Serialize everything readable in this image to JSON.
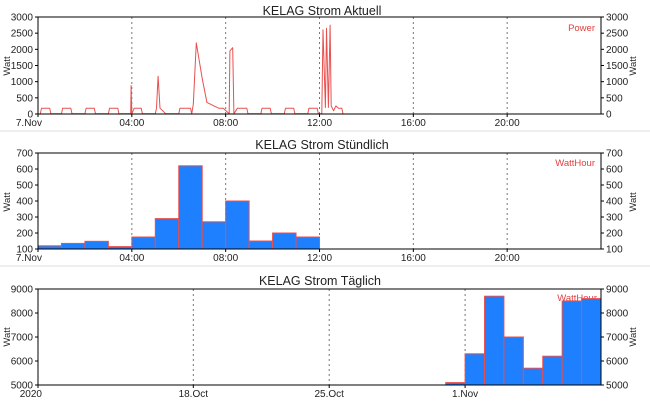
{
  "colors": {
    "line": "#e8504f",
    "bar_fill": "#1e7fff",
    "bar_stroke": "#e8504f",
    "legend": "#e0403f",
    "grid": "#777777",
    "frame": "#000000",
    "separator": "#dddddd"
  },
  "chart_data": [
    {
      "type": "line",
      "title": "KELAG Strom Aktuell",
      "ylabel": "Watt",
      "ylabel_right": "Watt",
      "legend": "Power",
      "legend_position": "top-right",
      "ylim": [
        0,
        3000
      ],
      "yticks": [
        "0",
        "500",
        "1000",
        "1500",
        "2000",
        "2500",
        "3000"
      ],
      "xlim": [
        0,
        24
      ],
      "xticks": [
        {
          "x": 0,
          "label": "7.Nov"
        },
        {
          "x": 4,
          "label": "04:00"
        },
        {
          "x": 8,
          "label": "08:00"
        },
        {
          "x": 12,
          "label": "12:00"
        },
        {
          "x": 16,
          "label": "16:00"
        },
        {
          "x": 20,
          "label": "20:00"
        }
      ],
      "grid_x": [
        4,
        8,
        12,
        16,
        20
      ],
      "series": [
        {
          "values": [
            [
              0.1,
              5
            ],
            [
              0.15,
              180
            ],
            [
              0.5,
              180
            ],
            [
              0.55,
              5
            ],
            [
              1.0,
              5
            ],
            [
              1.05,
              180
            ],
            [
              1.4,
              180
            ],
            [
              1.45,
              5
            ],
            [
              2.0,
              5
            ],
            [
              2.05,
              180
            ],
            [
              2.4,
              180
            ],
            [
              2.45,
              5
            ],
            [
              3.0,
              5
            ],
            [
              3.05,
              180
            ],
            [
              3.4,
              180
            ],
            [
              3.45,
              5
            ],
            [
              3.95,
              5
            ],
            [
              3.97,
              880
            ],
            [
              4.0,
              5
            ],
            [
              4.1,
              180
            ],
            [
              4.4,
              180
            ],
            [
              4.45,
              5
            ],
            [
              5.0,
              5
            ],
            [
              5.05,
              180
            ],
            [
              5.12,
              1170
            ],
            [
              5.2,
              180
            ],
            [
              5.45,
              5
            ],
            [
              6.0,
              5
            ],
            [
              6.05,
              180
            ],
            [
              6.5,
              180
            ],
            [
              6.55,
              5
            ],
            [
              6.62,
              300
            ],
            [
              6.75,
              2200
            ],
            [
              7.0,
              1100
            ],
            [
              7.2,
              360
            ],
            [
              7.7,
              180
            ],
            [
              7.9,
              180
            ],
            [
              8.15,
              5
            ],
            [
              8.18,
              1950
            ],
            [
              8.3,
              2050
            ],
            [
              8.35,
              5
            ],
            [
              8.5,
              180
            ],
            [
              8.9,
              180
            ],
            [
              8.95,
              5
            ],
            [
              9.5,
              5
            ],
            [
              9.55,
              180
            ],
            [
              9.9,
              180
            ],
            [
              9.95,
              5
            ],
            [
              10.5,
              5
            ],
            [
              10.55,
              180
            ],
            [
              10.9,
              180
            ],
            [
              10.95,
              5
            ],
            [
              11.5,
              5
            ],
            [
              11.55,
              180
            ],
            [
              11.9,
              180
            ],
            [
              11.95,
              5
            ],
            [
              12.1,
              5
            ],
            [
              12.15,
              2600
            ],
            [
              12.25,
              200
            ],
            [
              12.3,
              2650
            ],
            [
              12.38,
              200
            ],
            [
              12.45,
              2750
            ],
            [
              12.5,
              250
            ],
            [
              12.6,
              100
            ],
            [
              12.7,
              250
            ],
            [
              12.8,
              180
            ],
            [
              12.95,
              180
            ],
            [
              13.0,
              5
            ]
          ]
        }
      ]
    },
    {
      "type": "bar",
      "title": "KELAG Strom Stündlich",
      "ylabel": "Watt",
      "ylabel_right": "Watt",
      "legend": "WattHour",
      "legend_position": "top-right",
      "ylim": [
        100,
        700
      ],
      "yticks": [
        "100",
        "200",
        "300",
        "400",
        "500",
        "600",
        "700"
      ],
      "xlim": [
        0,
        24
      ],
      "xticks": [
        {
          "x": 0,
          "label": "7.Nov"
        },
        {
          "x": 4,
          "label": "04:00"
        },
        {
          "x": 8,
          "label": "08:00"
        },
        {
          "x": 12,
          "label": "12:00"
        },
        {
          "x": 16,
          "label": "16:00"
        },
        {
          "x": 20,
          "label": "20:00"
        }
      ],
      "grid_x": [
        4,
        8,
        12,
        16,
        20
      ],
      "categories": [
        "0",
        "1",
        "2",
        "3",
        "4",
        "5",
        "6",
        "7",
        "8",
        "9",
        "10",
        "11"
      ],
      "values": [
        120,
        135,
        148,
        115,
        175,
        290,
        620,
        270,
        400,
        150,
        200,
        175
      ]
    },
    {
      "type": "bar",
      "title": "KELAG Strom Täglich",
      "ylabel": "Watt",
      "ylabel_right": "Watt",
      "legend": "WattHour",
      "legend_position": "top-right",
      "ylim": [
        5000,
        9000
      ],
      "yticks": [
        "5000",
        "6000",
        "7000",
        "8000",
        "9000"
      ],
      "xlim": [
        0,
        29
      ],
      "xticks": [
        {
          "x": 0,
          "label": "2020"
        },
        {
          "x": 8,
          "label": "18.Oct"
        },
        {
          "x": 15,
          "label": "25.Oct"
        },
        {
          "x": 22,
          "label": "1.Nov"
        }
      ],
      "grid_x": [
        8,
        15,
        22
      ],
      "categories": [
        "30.Oct",
        "31.Oct",
        "1.Nov",
        "2.Nov",
        "3.Nov",
        "4.Nov",
        "5.Nov",
        "6.Nov"
      ],
      "values": [
        5100,
        6300,
        8700,
        7000,
        5700,
        6200,
        8500,
        8600
      ]
    }
  ]
}
